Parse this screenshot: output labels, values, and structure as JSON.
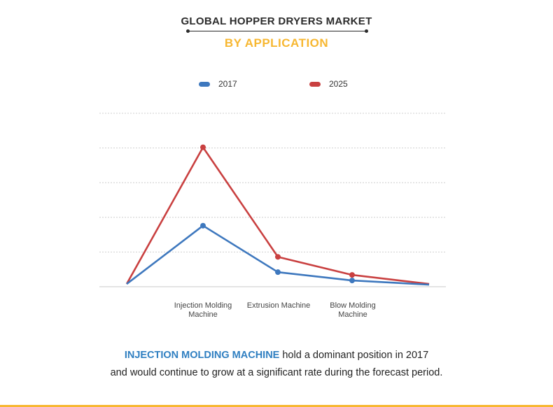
{
  "header": {
    "title": "GLOBAL HOPPER DRYERS MARKET",
    "subtitle": "BY APPLICATION"
  },
  "colors": {
    "series_2017": "#3e78be",
    "series_2025": "#c94040",
    "accent": "#f7b731",
    "highlight_text": "#2f7fc1"
  },
  "chart_data": {
    "type": "line",
    "title": "GLOBAL HOPPER DRYERS MARKET",
    "subtitle": "BY APPLICATION",
    "categories": [
      "",
      "Injection Molding Machine",
      "Extrusion Machine",
      "Blow Molding Machine",
      ""
    ],
    "series": [
      {
        "name": "2017",
        "values": [
          0.4,
          8.8,
          2.1,
          0.9,
          0.3
        ]
      },
      {
        "name": "2025",
        "values": [
          0.4,
          20.1,
          4.3,
          1.7,
          0.4
        ]
      }
    ],
    "ylim": [
      0,
      25
    ],
    "grid": true,
    "legend": "top-center",
    "xlabel": "",
    "ylabel": ""
  },
  "footer": {
    "highlight": "INJECTION MOLDING MACHINE",
    "line1_rest": " hold a dominant position in 2017",
    "line2": "and would continue to grow at a significant rate during the forecast period."
  }
}
